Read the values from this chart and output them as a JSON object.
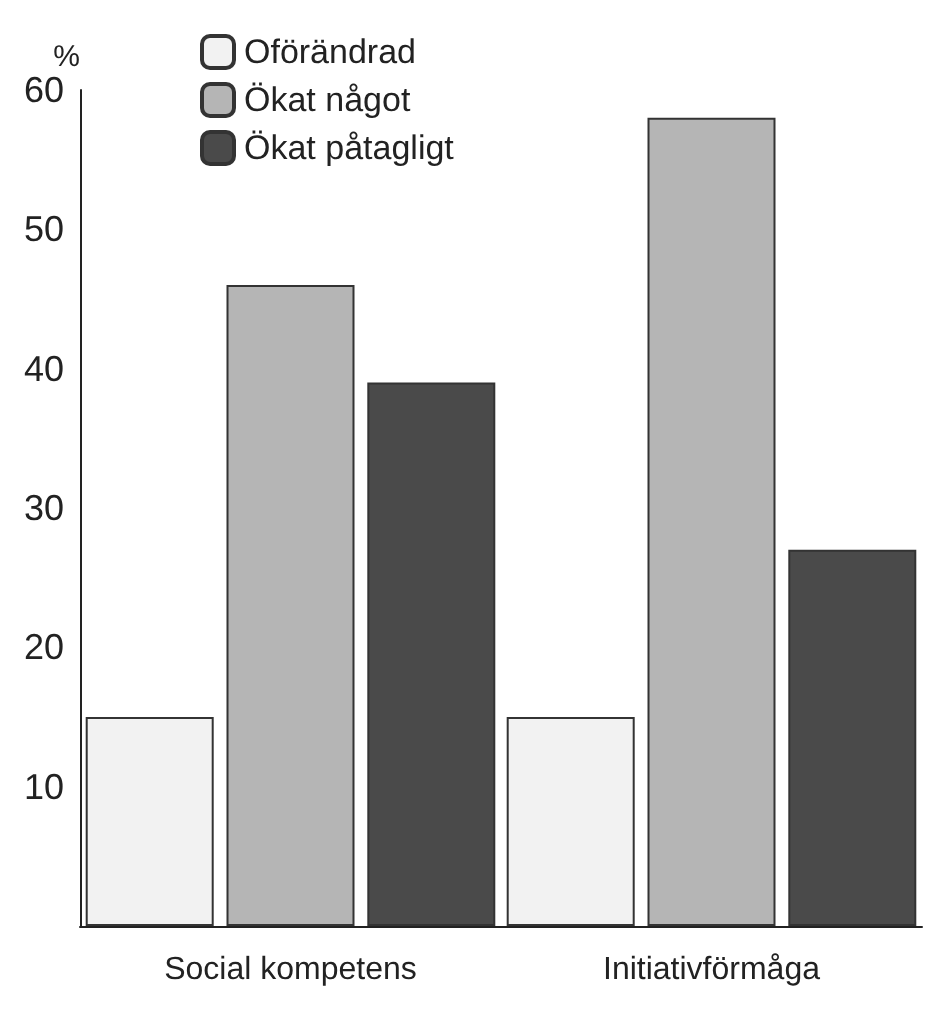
{
  "chart_data": {
    "type": "bar",
    "ylabel": "%",
    "categories": [
      "Social kompetens",
      "Initiativförmåga"
    ],
    "series": [
      {
        "name": "Oförändrad",
        "color": "#f2f2f2",
        "values": [
          15,
          15
        ]
      },
      {
        "name": "Ökat något",
        "color": "#b5b5b5",
        "values": [
          46,
          58
        ]
      },
      {
        "name": "Ökat påtagligt",
        "color": "#4a4a4a",
        "values": [
          39,
          27
        ]
      }
    ],
    "ylim": [
      0,
      60
    ],
    "yticks": [
      10,
      20,
      30,
      40,
      50,
      60
    ],
    "grid": false,
    "legend": "top left"
  }
}
